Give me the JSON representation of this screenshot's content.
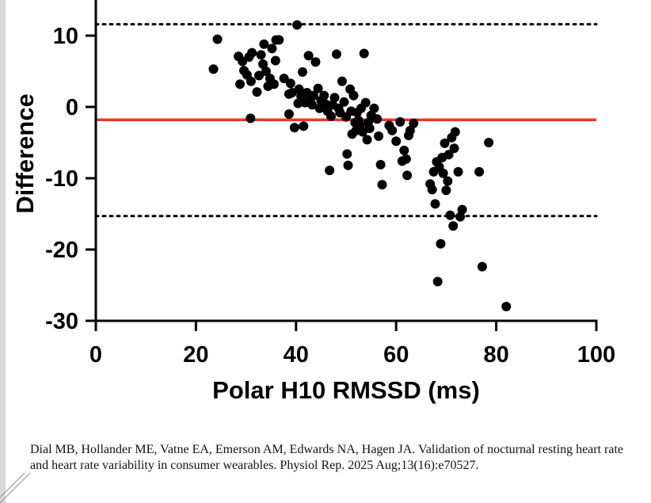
{
  "chart_data": {
    "type": "scatter",
    "title": "",
    "xlabel": "Polar H10 RMSSD (ms)",
    "ylabel": "Difference",
    "xlim": [
      0,
      100
    ],
    "ylim": [
      -30,
      15
    ],
    "x_ticks": [
      0,
      20,
      40,
      60,
      80,
      100
    ],
    "x_tick_labels": [
      "0",
      "20",
      "40",
      "60",
      "80",
      "100"
    ],
    "y_ticks": [
      10,
      0,
      -10,
      -20,
      -30
    ],
    "y_tick_labels": [
      "10",
      "0",
      "-10",
      "-20",
      "-30"
    ],
    "mean_bias": -1.8,
    "upper_loa": 11.6,
    "lower_loa": -15.3,
    "grid": false,
    "points": [
      [
        23.5,
        5.3
      ],
      [
        24.3,
        9.5
      ],
      [
        28.5,
        7.1
      ],
      [
        28.8,
        3.2
      ],
      [
        29.3,
        6.4
      ],
      [
        29.6,
        5.1
      ],
      [
        30.2,
        4.5
      ],
      [
        30.6,
        7.0
      ],
      [
        31.0,
        3.6
      ],
      [
        31.2,
        7.6
      ],
      [
        30.9,
        -1.6
      ],
      [
        32.2,
        2.1
      ],
      [
        32.6,
        4.4
      ],
      [
        33.0,
        7.3
      ],
      [
        33.4,
        6.0
      ],
      [
        33.6,
        8.8
      ],
      [
        34.0,
        5.0
      ],
      [
        34.4,
        2.9
      ],
      [
        34.8,
        4.0
      ],
      [
        35.2,
        8.2
      ],
      [
        35.6,
        3.2
      ],
      [
        35.9,
        6.5
      ],
      [
        36.0,
        9.4
      ],
      [
        36.6,
        9.4
      ],
      [
        37.6,
        4.0
      ],
      [
        38.6,
        1.8
      ],
      [
        38.9,
        3.3
      ],
      [
        38.6,
        -1.0
      ],
      [
        39.2,
        2.0
      ],
      [
        39.7,
        -2.9
      ],
      [
        40.2,
        11.5
      ],
      [
        40.4,
        0.5
      ],
      [
        40.6,
        2.5
      ],
      [
        41.0,
        1.5
      ],
      [
        41.3,
        4.9
      ],
      [
        41.5,
        -2.7
      ],
      [
        41.8,
        0.6
      ],
      [
        42.2,
        2.0
      ],
      [
        42.5,
        7.2
      ],
      [
        42.8,
        1.0
      ],
      [
        43.2,
        0.3
      ],
      [
        43.5,
        1.6
      ],
      [
        43.9,
        6.3
      ],
      [
        44.4,
        2.6
      ],
      [
        44.7,
        -0.2
      ],
      [
        45.0,
        0.9
      ],
      [
        45.6,
        1.6
      ],
      [
        45.9,
        0.4
      ],
      [
        46.3,
        -0.6
      ],
      [
        46.7,
        -8.9
      ],
      [
        47.0,
        -1.3
      ],
      [
        47.3,
        0.3
      ],
      [
        47.7,
        1.3
      ],
      [
        48.1,
        7.4
      ],
      [
        48.5,
        -0.2
      ],
      [
        48.8,
        -0.8
      ],
      [
        49.2,
        3.6
      ],
      [
        49.6,
        0.7
      ],
      [
        50.0,
        -1.4
      ],
      [
        50.2,
        -6.6
      ],
      [
        50.4,
        -8.2
      ],
      [
        50.8,
        2.5
      ],
      [
        51.0,
        -0.6
      ],
      [
        51.2,
        -3.8
      ],
      [
        51.5,
        1.6
      ],
      [
        51.8,
        -2.2
      ],
      [
        52.0,
        -3.3
      ],
      [
        52.2,
        -0.8
      ],
      [
        52.5,
        -1.9
      ],
      [
        52.8,
        -2.7
      ],
      [
        53.0,
        -0.2
      ],
      [
        53.3,
        -3.5
      ],
      [
        53.6,
        7.5
      ],
      [
        53.9,
        0.6
      ],
      [
        54.2,
        -4.6
      ],
      [
        54.4,
        -2.2
      ],
      [
        54.7,
        -3.0
      ],
      [
        55.0,
        -1.2
      ],
      [
        55.4,
        -1.5
      ],
      [
        55.6,
        -0.2
      ],
      [
        56.2,
        -1.7
      ],
      [
        56.5,
        -4.1
      ],
      [
        56.9,
        -8.1
      ],
      [
        57.2,
        -10.9
      ],
      [
        58.6,
        -2.6
      ],
      [
        59.2,
        -3.3
      ],
      [
        60.0,
        -4.8
      ],
      [
        60.8,
        -2.1
      ],
      [
        61.2,
        -7.6
      ],
      [
        61.6,
        -6.1
      ],
      [
        62.0,
        -7.3
      ],
      [
        62.2,
        -9.6
      ],
      [
        62.5,
        -4.0
      ],
      [
        62.8,
        -3.3
      ],
      [
        63.5,
        -2.3
      ],
      [
        66.8,
        -10.8
      ],
      [
        67.2,
        -11.6
      ],
      [
        67.5,
        -9.1
      ],
      [
        67.8,
        -13.6
      ],
      [
        68.1,
        -7.7
      ],
      [
        68.3,
        -24.5
      ],
      [
        68.6,
        -8.4
      ],
      [
        68.9,
        -19.2
      ],
      [
        69.2,
        -7.1
      ],
      [
        69.4,
        -9.3
      ],
      [
        69.7,
        -5.1
      ],
      [
        70.0,
        -11.7
      ],
      [
        70.3,
        -10.4
      ],
      [
        70.5,
        -6.7
      ],
      [
        70.8,
        -15.2
      ],
      [
        71.1,
        -4.3
      ],
      [
        71.4,
        -16.7
      ],
      [
        71.6,
        -5.8
      ],
      [
        71.8,
        -3.5
      ],
      [
        72.4,
        -9.1
      ],
      [
        72.8,
        -15.4
      ],
      [
        73.2,
        -14.4
      ],
      [
        76.6,
        -9.1
      ],
      [
        77.2,
        -22.4
      ],
      [
        78.5,
        -5.0
      ],
      [
        82.0,
        -28.0
      ]
    ]
  },
  "citation": {
    "text": "Dial MB, Hollander ME, Vatne EA, Emerson AM, Edwards NA, Hagen JA. Validation of nocturnal resting heart rate and heart rate variability in consumer wearables. Physiol Rep. 2025 Aug;13(16):e70527."
  },
  "colors": {
    "points": "#000000",
    "mean_line": "#e8392a",
    "axis": "#000000",
    "loa_line": "#000000"
  }
}
